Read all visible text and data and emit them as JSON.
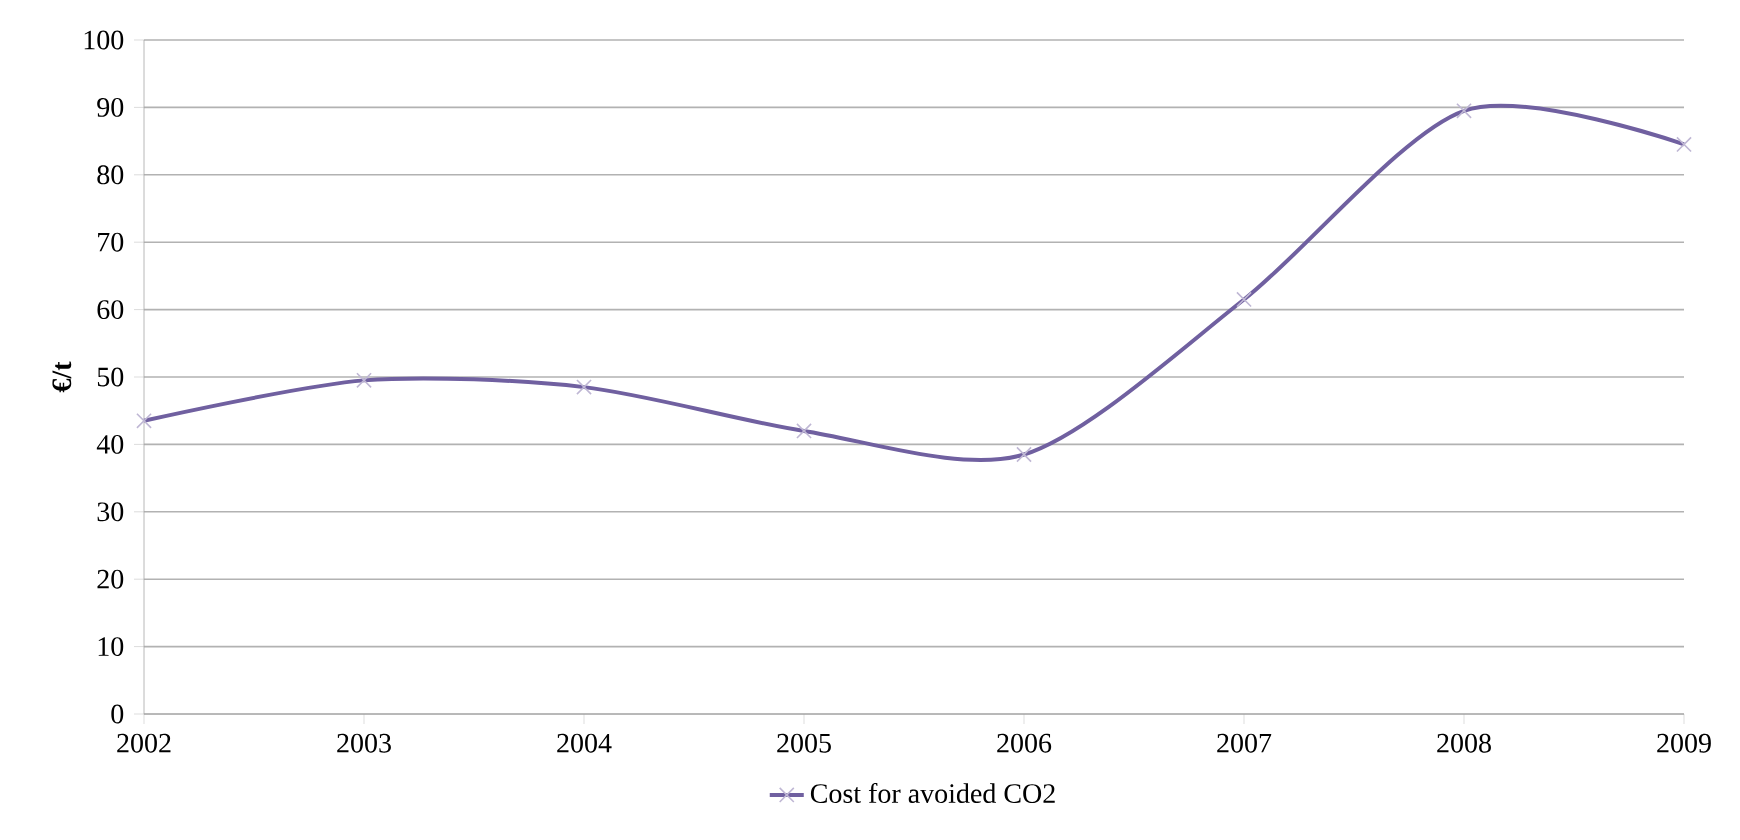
{
  "chart_data": {
    "type": "line",
    "ylabel": "€/t",
    "categories": [
      "2002",
      "2003",
      "2004",
      "2005",
      "2006",
      "2007",
      "2008",
      "2009"
    ],
    "series": [
      {
        "name": "Cost for avoided CO2",
        "color": "#7060a0",
        "values": [
          43.5,
          49.5,
          48.5,
          42,
          38.5,
          61.5,
          89.5,
          84.5
        ]
      }
    ],
    "ylim": [
      0,
      100
    ],
    "yticks": [
      0,
      10,
      20,
      30,
      40,
      50,
      60,
      70,
      80,
      90,
      100
    ],
    "grid": "y",
    "legend": "bottom",
    "marker": "cross",
    "line_style": "solid"
  }
}
